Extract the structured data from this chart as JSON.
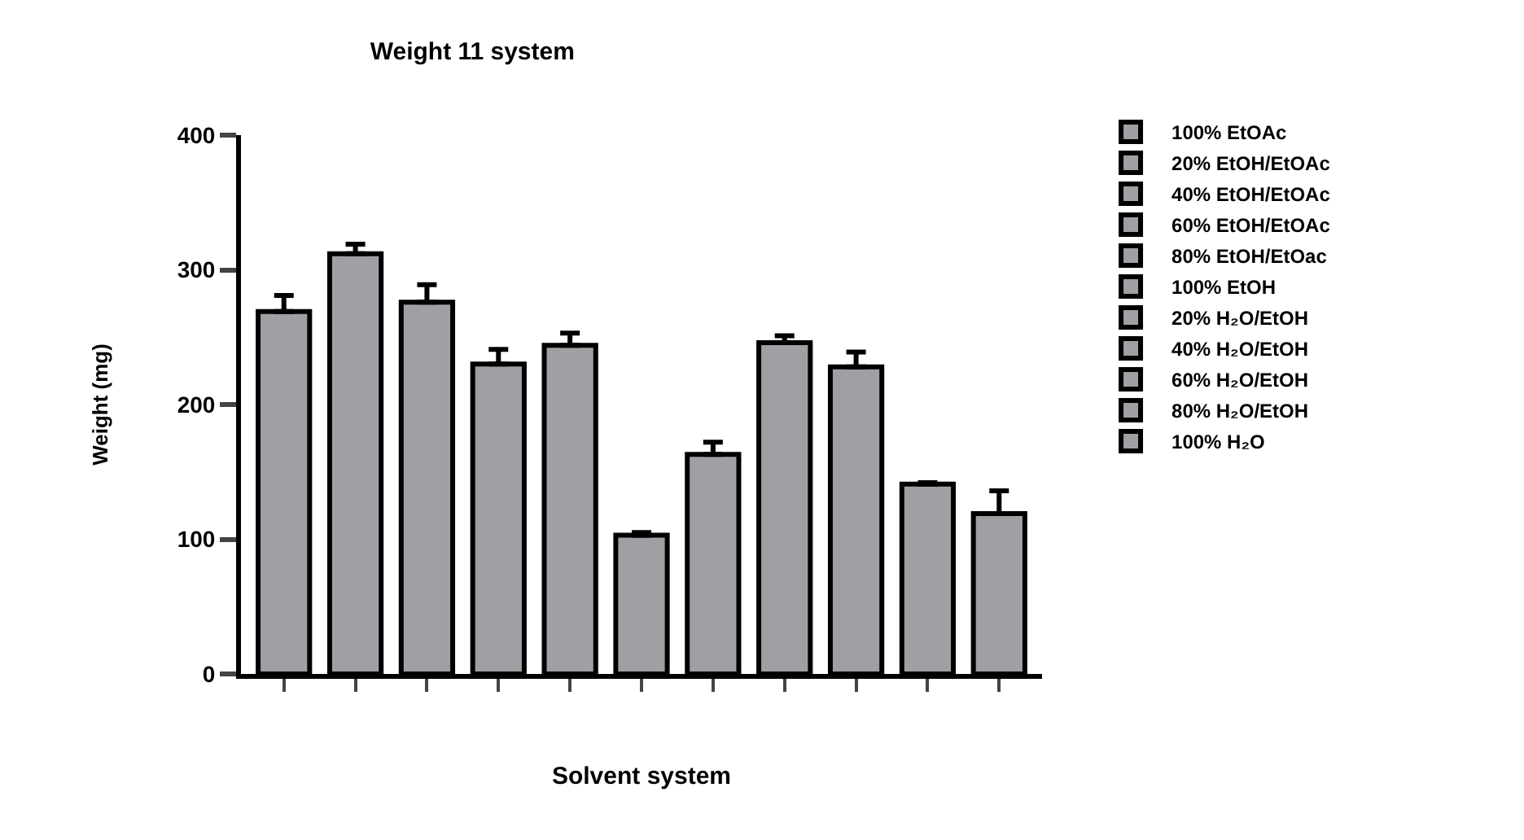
{
  "chart_data": {
    "type": "bar",
    "title": "Weight 11 system",
    "xlabel": "Solvent system",
    "ylabel": "Weight (mg)",
    "categories": [
      null,
      null,
      null,
      null,
      null,
      null,
      null,
      null,
      null,
      null,
      null
    ],
    "ylim": [
      0,
      400
    ],
    "yticks": [
      0,
      100,
      200,
      300,
      400
    ],
    "grid": false,
    "legend": "right",
    "series": [
      {
        "name": "100% EtOAc",
        "color": "#a0a0a4",
        "values": [
          269,
          null,
          null,
          null,
          null,
          null,
          null,
          null,
          null,
          null,
          null
        ],
        "errors": [
          [
            269,
            281
          ],
          null,
          null,
          null,
          null,
          null,
          null,
          null,
          null,
          null,
          null
        ]
      },
      {
        "name": "20% EtOH/EtOAc",
        "color": "#a0a0a4",
        "values": [
          null,
          312,
          null,
          null,
          null,
          null,
          null,
          null,
          null,
          null,
          null
        ],
        "errors": [
          null,
          [
            312,
            319
          ],
          null,
          null,
          null,
          null,
          null,
          null,
          null,
          null,
          null
        ]
      },
      {
        "name": "40% EtOH/EtOAc",
        "color": "#a0a0a4",
        "values": [
          null,
          null,
          276,
          null,
          null,
          null,
          null,
          null,
          null,
          null,
          null
        ],
        "errors": [
          null,
          null,
          [
            276,
            289
          ],
          null,
          null,
          null,
          null,
          null,
          null,
          null,
          null
        ]
      },
      {
        "name": "60% EtOH/EtOAc",
        "color": "#a0a0a4",
        "values": [
          null,
          null,
          null,
          230,
          null,
          null,
          null,
          null,
          null,
          null,
          null
        ],
        "errors": [
          null,
          null,
          null,
          [
            230,
            241
          ],
          null,
          null,
          null,
          null,
          null,
          null,
          null
        ]
      },
      {
        "name": "80% EtOH/EtOac",
        "color": "#a0a0a4",
        "values": [
          null,
          null,
          null,
          null,
          244,
          null,
          null,
          null,
          null,
          null,
          null
        ],
        "errors": [
          null,
          null,
          null,
          null,
          [
            244,
            253
          ],
          null,
          null,
          null,
          null,
          null,
          null
        ]
      },
      {
        "name": "100% EtOH",
        "color": "#a0a0a4",
        "values": [
          null,
          null,
          null,
          null,
          null,
          103,
          null,
          null,
          null,
          null,
          null
        ],
        "errors": [
          null,
          null,
          null,
          null,
          null,
          [
            103,
            105
          ],
          null,
          null,
          null,
          null,
          null
        ]
      },
      {
        "name": "20% H₂O/EtOH",
        "color": "#a0a0a4",
        "values": [
          null,
          null,
          null,
          null,
          null,
          null,
          163,
          null,
          null,
          null,
          null
        ],
        "errors": [
          null,
          null,
          null,
          null,
          null,
          null,
          [
            163,
            172
          ],
          null,
          null,
          null,
          null
        ]
      },
      {
        "name": "40% H₂O/EtOH",
        "color": "#a0a0a4",
        "values": [
          null,
          null,
          null,
          null,
          null,
          null,
          null,
          246,
          null,
          null,
          null
        ],
        "errors": [
          null,
          null,
          null,
          null,
          null,
          null,
          null,
          [
            246,
            251
          ],
          null,
          null,
          null
        ]
      },
      {
        "name": "60% H₂O/EtOH",
        "color": "#a0a0a4",
        "values": [
          null,
          null,
          null,
          null,
          null,
          null,
          null,
          null,
          228,
          null,
          null
        ],
        "errors": [
          null,
          null,
          null,
          null,
          null,
          null,
          null,
          null,
          [
            228,
            239
          ],
          null,
          null
        ]
      },
      {
        "name": "80% H₂O/EtOH",
        "color": "#a0a0a4",
        "values": [
          null,
          null,
          null,
          null,
          null,
          null,
          null,
          null,
          null,
          141,
          null
        ],
        "errors": [
          null,
          null,
          null,
          null,
          null,
          null,
          null,
          null,
          null,
          [
            141,
            142
          ],
          null
        ]
      },
      {
        "name": "100% H₂O",
        "color": "#a0a0a4",
        "values": [
          null,
          null,
          null,
          null,
          null,
          null,
          null,
          null,
          null,
          null,
          119
        ],
        "errors": [
          null,
          null,
          null,
          null,
          null,
          null,
          null,
          null,
          null,
          null,
          [
            119,
            136
          ]
        ]
      }
    ]
  }
}
